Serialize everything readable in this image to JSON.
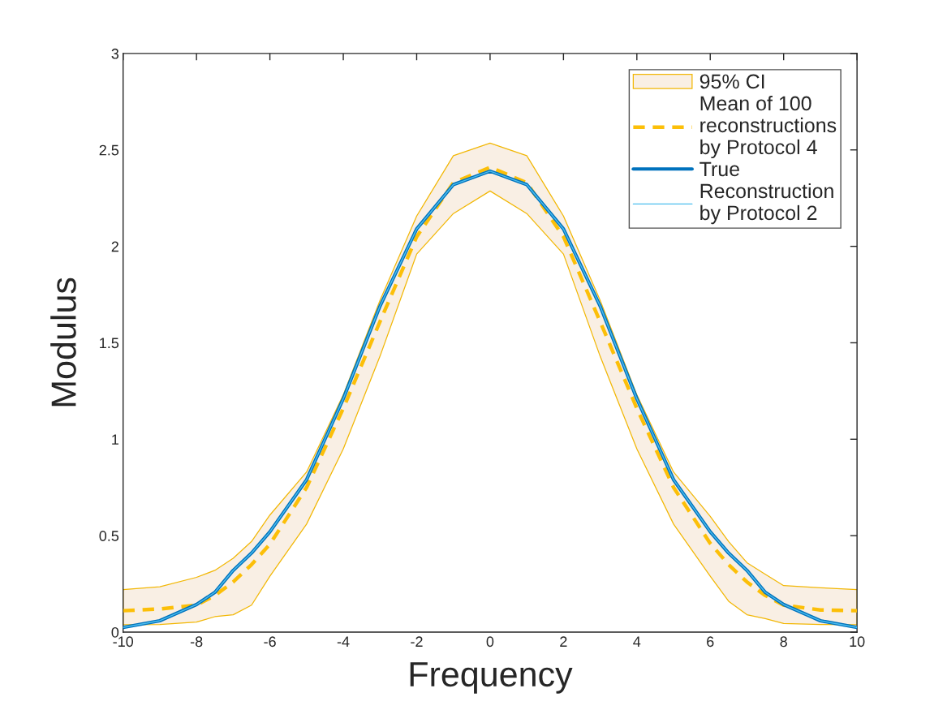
{
  "chart_data": {
    "type": "line",
    "xlabel": "Frequency",
    "ylabel": "Modulus",
    "x": [
      -10,
      -9,
      -8,
      -7.5,
      -7,
      -6.5,
      -6,
      -5,
      -4,
      -3,
      -2,
      -1,
      0,
      1,
      2,
      3,
      4,
      5,
      6,
      6.5,
      7,
      7.5,
      8,
      9,
      10
    ],
    "series": [
      {
        "name": "95% CI",
        "type": "area",
        "color": "#f9efe4",
        "values": [
          null,
          null,
          null,
          null,
          null,
          null,
          null,
          null,
          null,
          null,
          null,
          null,
          null,
          null,
          null,
          null,
          null,
          null,
          null,
          null,
          null,
          null,
          null,
          null,
          null
        ]
      },
      {
        "name": "Mean of 100\nreconstructions\nby Protocol 4",
        "type": "line",
        "color": "#fcbf08",
        "line_style": "dashed",
        "values": [
          0.111,
          0.12,
          0.14,
          0.19,
          0.26,
          0.35,
          0.456,
          0.75,
          1.16,
          1.61,
          2.05,
          2.33,
          2.41,
          2.33,
          2.05,
          1.61,
          1.16,
          0.75,
          0.46,
          0.35,
          0.26,
          0.19,
          0.14,
          0.115,
          0.111
        ],
        "lower": [
          0.038,
          0.04,
          0.052,
          0.08,
          0.09,
          0.14,
          0.29,
          0.56,
          0.95,
          1.43,
          1.96,
          2.17,
          2.287,
          2.17,
          1.96,
          1.43,
          0.95,
          0.56,
          0.29,
          0.16,
          0.09,
          0.07,
          0.045,
          0.04,
          0.038
        ],
        "upper": [
          0.22,
          0.235,
          0.284,
          0.32,
          0.383,
          0.47,
          0.607,
          0.83,
          1.23,
          1.72,
          2.157,
          2.47,
          2.535,
          2.47,
          2.157,
          1.72,
          1.23,
          0.83,
          0.6,
          0.47,
          0.36,
          0.3,
          0.241,
          0.23,
          0.22
        ]
      },
      {
        "name": "True",
        "type": "line",
        "color": "#0072bd",
        "line_style": "solid",
        "values": [
          0.024,
          0.059,
          0.143,
          0.206,
          0.32,
          0.41,
          0.52,
          0.79,
          1.21,
          1.69,
          2.09,
          2.32,
          2.39,
          2.32,
          2.09,
          1.69,
          1.21,
          0.79,
          0.52,
          0.41,
          0.32,
          0.206,
          0.143,
          0.059,
          0.024
        ]
      },
      {
        "name": "Reconstruction\nby Protocol 2",
        "type": "line",
        "color": "#4dbeee",
        "line_style": "solid",
        "values": [
          0.024,
          0.059,
          0.143,
          0.206,
          0.32,
          0.41,
          0.52,
          0.79,
          1.21,
          1.69,
          2.09,
          2.32,
          2.39,
          2.32,
          2.09,
          1.69,
          1.21,
          0.79,
          0.52,
          0.41,
          0.32,
          0.206,
          0.143,
          0.059,
          0.024
        ]
      }
    ],
    "xlim": [
      -10,
      10
    ],
    "xticks": [
      -10,
      -8,
      -6,
      -4,
      -2,
      0,
      2,
      4,
      6,
      8,
      10
    ],
    "ylim": [
      0,
      3
    ],
    "yticks": [
      0,
      0.5,
      1,
      1.5,
      2,
      2.5,
      3
    ],
    "grid": false,
    "legend": "top right"
  }
}
